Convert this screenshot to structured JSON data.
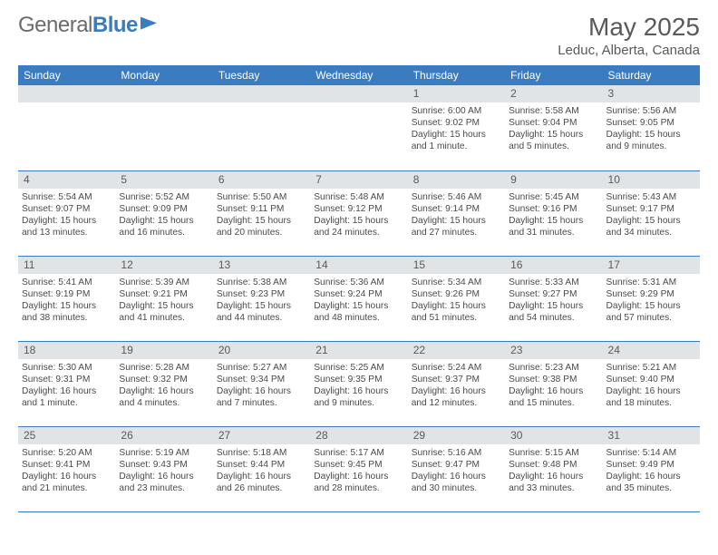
{
  "logo": {
    "text1": "General",
    "text2": "Blue"
  },
  "title": "May 2025",
  "location": "Leduc, Alberta, Canada",
  "header_bg": "#3b7bbf",
  "columns": [
    "Sunday",
    "Monday",
    "Tuesday",
    "Wednesday",
    "Thursday",
    "Friday",
    "Saturday"
  ],
  "weeks": [
    [
      null,
      null,
      null,
      null,
      {
        "n": "1",
        "sunrise": "6:00 AM",
        "sunset": "9:02 PM",
        "day": "15 hours and 1 minute."
      },
      {
        "n": "2",
        "sunrise": "5:58 AM",
        "sunset": "9:04 PM",
        "day": "15 hours and 5 minutes."
      },
      {
        "n": "3",
        "sunrise": "5:56 AM",
        "sunset": "9:05 PM",
        "day": "15 hours and 9 minutes."
      }
    ],
    [
      {
        "n": "4",
        "sunrise": "5:54 AM",
        "sunset": "9:07 PM",
        "day": "15 hours and 13 minutes."
      },
      {
        "n": "5",
        "sunrise": "5:52 AM",
        "sunset": "9:09 PM",
        "day": "15 hours and 16 minutes."
      },
      {
        "n": "6",
        "sunrise": "5:50 AM",
        "sunset": "9:11 PM",
        "day": "15 hours and 20 minutes."
      },
      {
        "n": "7",
        "sunrise": "5:48 AM",
        "sunset": "9:12 PM",
        "day": "15 hours and 24 minutes."
      },
      {
        "n": "8",
        "sunrise": "5:46 AM",
        "sunset": "9:14 PM",
        "day": "15 hours and 27 minutes."
      },
      {
        "n": "9",
        "sunrise": "5:45 AM",
        "sunset": "9:16 PM",
        "day": "15 hours and 31 minutes."
      },
      {
        "n": "10",
        "sunrise": "5:43 AM",
        "sunset": "9:17 PM",
        "day": "15 hours and 34 minutes."
      }
    ],
    [
      {
        "n": "11",
        "sunrise": "5:41 AM",
        "sunset": "9:19 PM",
        "day": "15 hours and 38 minutes."
      },
      {
        "n": "12",
        "sunrise": "5:39 AM",
        "sunset": "9:21 PM",
        "day": "15 hours and 41 minutes."
      },
      {
        "n": "13",
        "sunrise": "5:38 AM",
        "sunset": "9:23 PM",
        "day": "15 hours and 44 minutes."
      },
      {
        "n": "14",
        "sunrise": "5:36 AM",
        "sunset": "9:24 PM",
        "day": "15 hours and 48 minutes."
      },
      {
        "n": "15",
        "sunrise": "5:34 AM",
        "sunset": "9:26 PM",
        "day": "15 hours and 51 minutes."
      },
      {
        "n": "16",
        "sunrise": "5:33 AM",
        "sunset": "9:27 PM",
        "day": "15 hours and 54 minutes."
      },
      {
        "n": "17",
        "sunrise": "5:31 AM",
        "sunset": "9:29 PM",
        "day": "15 hours and 57 minutes."
      }
    ],
    [
      {
        "n": "18",
        "sunrise": "5:30 AM",
        "sunset": "9:31 PM",
        "day": "16 hours and 1 minute."
      },
      {
        "n": "19",
        "sunrise": "5:28 AM",
        "sunset": "9:32 PM",
        "day": "16 hours and 4 minutes."
      },
      {
        "n": "20",
        "sunrise": "5:27 AM",
        "sunset": "9:34 PM",
        "day": "16 hours and 7 minutes."
      },
      {
        "n": "21",
        "sunrise": "5:25 AM",
        "sunset": "9:35 PM",
        "day": "16 hours and 9 minutes."
      },
      {
        "n": "22",
        "sunrise": "5:24 AM",
        "sunset": "9:37 PM",
        "day": "16 hours and 12 minutes."
      },
      {
        "n": "23",
        "sunrise": "5:23 AM",
        "sunset": "9:38 PM",
        "day": "16 hours and 15 minutes."
      },
      {
        "n": "24",
        "sunrise": "5:21 AM",
        "sunset": "9:40 PM",
        "day": "16 hours and 18 minutes."
      }
    ],
    [
      {
        "n": "25",
        "sunrise": "5:20 AM",
        "sunset": "9:41 PM",
        "day": "16 hours and 21 minutes."
      },
      {
        "n": "26",
        "sunrise": "5:19 AM",
        "sunset": "9:43 PM",
        "day": "16 hours and 23 minutes."
      },
      {
        "n": "27",
        "sunrise": "5:18 AM",
        "sunset": "9:44 PM",
        "day": "16 hours and 26 minutes."
      },
      {
        "n": "28",
        "sunrise": "5:17 AM",
        "sunset": "9:45 PM",
        "day": "16 hours and 28 minutes."
      },
      {
        "n": "29",
        "sunrise": "5:16 AM",
        "sunset": "9:47 PM",
        "day": "16 hours and 30 minutes."
      },
      {
        "n": "30",
        "sunrise": "5:15 AM",
        "sunset": "9:48 PM",
        "day": "16 hours and 33 minutes."
      },
      {
        "n": "31",
        "sunrise": "5:14 AM",
        "sunset": "9:49 PM",
        "day": "16 hours and 35 minutes."
      }
    ]
  ],
  "labels": {
    "sunrise": "Sunrise:",
    "sunset": "Sunset:",
    "daylight": "Daylight:"
  }
}
